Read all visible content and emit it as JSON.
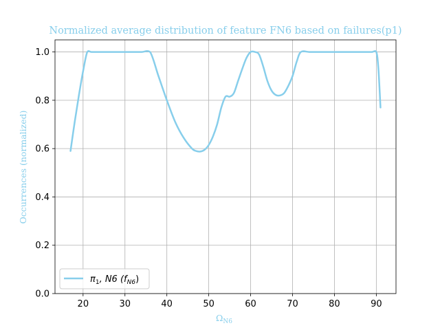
{
  "colors": {
    "series": "#87ceeb",
    "title": "#87ceeb",
    "axis_labels": "#87ceeb",
    "grid": "#b0b0b0",
    "axes": "#000000"
  },
  "chart_data": {
    "type": "line",
    "title": "Normalized average distribution of feature FN6 based on failures(p1)",
    "xlabel": "Ω",
    "xlabel_sub": "N6",
    "ylabel": "Occurrences (normalized)",
    "xlim": [
      13.3,
      94.7
    ],
    "ylim": [
      0.0,
      1.05
    ],
    "x_ticks": [
      20,
      30,
      40,
      50,
      60,
      70,
      80,
      90
    ],
    "y_ticks": [
      0.0,
      0.2,
      0.4,
      0.6,
      0.8,
      1.0
    ],
    "y_tick_labels": [
      "0.0",
      "0.2",
      "0.4",
      "0.6",
      "0.8",
      "1.0"
    ],
    "grid": true,
    "legend_position": "lower-left",
    "series": [
      {
        "name": "π1, N6 (fN6)",
        "legend": {
          "main": "π",
          "sub1": "1",
          "mid": ", N6 (f",
          "sub2": "N6",
          "end": ")"
        },
        "x": [
          17,
          18,
          19,
          20,
          21,
          22,
          24,
          26,
          28,
          30,
          32,
          34,
          36,
          38,
          40,
          42,
          44,
          46,
          47,
          48,
          49,
          50,
          51,
          52,
          53,
          54,
          55,
          56,
          57,
          58,
          59,
          60,
          61,
          62,
          63,
          64,
          65,
          66,
          67,
          68,
          69,
          70,
          71,
          72,
          74,
          76,
          78,
          80,
          82,
          84,
          86,
          88,
          89,
          90,
          90.5,
          91
        ],
        "y": [
          0.59,
          0.71,
          0.82,
          0.92,
          1.0,
          1.0,
          1.0,
          1.0,
          1.0,
          1.0,
          1.0,
          1.0,
          1.0,
          0.9,
          0.8,
          0.71,
          0.645,
          0.6,
          0.59,
          0.588,
          0.595,
          0.615,
          0.65,
          0.7,
          0.77,
          0.815,
          0.815,
          0.83,
          0.88,
          0.93,
          0.975,
          1.0,
          1.0,
          0.99,
          0.94,
          0.88,
          0.84,
          0.822,
          0.82,
          0.83,
          0.86,
          0.9,
          0.96,
          1.0,
          1.0,
          1.0,
          1.0,
          1.0,
          1.0,
          1.0,
          1.0,
          1.0,
          1.0,
          1.0,
          0.93,
          0.77
        ]
      }
    ]
  }
}
